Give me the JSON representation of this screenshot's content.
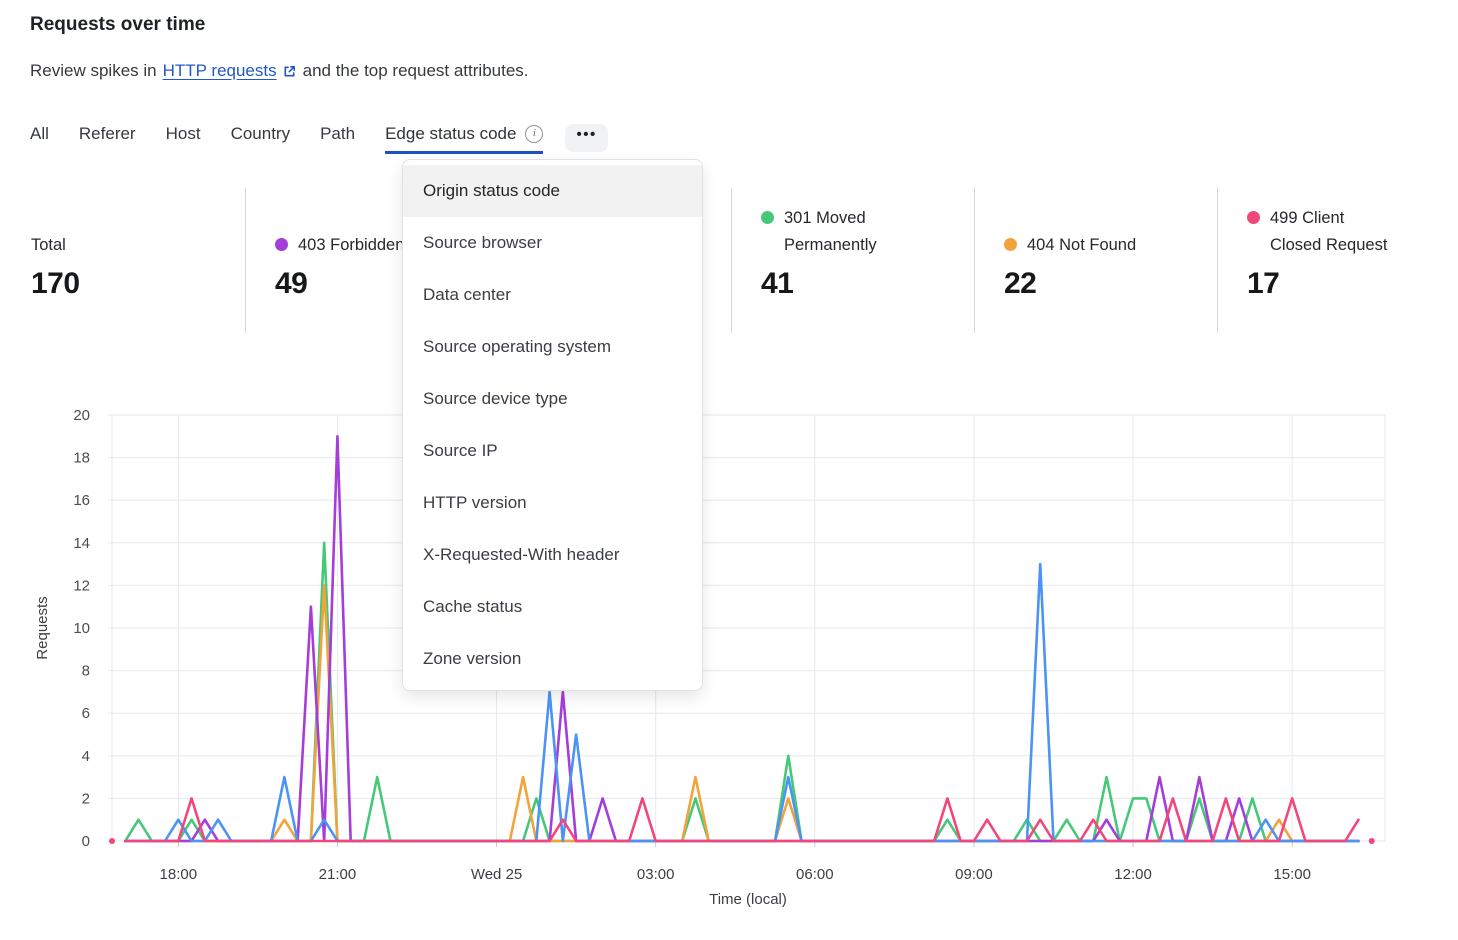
{
  "header": {
    "title": "Requests over time",
    "subtitle_prefix": "Review spikes in",
    "subtitle_link": "HTTP requests",
    "subtitle_suffix": "and the top request attributes.",
    "link_color": "#2158c4"
  },
  "tabs": {
    "items": [
      {
        "label": "All"
      },
      {
        "label": "Referer"
      },
      {
        "label": "Host"
      },
      {
        "label": "Country"
      },
      {
        "label": "Path"
      },
      {
        "label": "Edge status code"
      }
    ],
    "active": "Edge status code",
    "active_has_info_icon": true,
    "info_icon_glyph": "i",
    "more_label": "•••",
    "active_underline_color": "#1c52c5"
  },
  "dropdown": {
    "highlighted": "Origin status code",
    "items": [
      "Origin status code",
      "Source browser",
      "Data center",
      "Source operating system",
      "Source device type",
      "Source IP",
      "HTTP version",
      "X-Requested-With header",
      "Cache status",
      "Zone version"
    ]
  },
  "stats": {
    "columns": [
      {
        "label": "Total",
        "value": "170",
        "dot_color": null
      },
      {
        "label": "403 Forbidden",
        "value": "49",
        "dot_color": "#a53dd9"
      },
      {
        "label": "",
        "value": "",
        "dot_color": null,
        "note": "column hidden behind open dropdown menu"
      },
      {
        "label": "301 Moved Permanently",
        "value": "41",
        "dot_color": "#46c878"
      },
      {
        "label": "404 Not Found",
        "value": "22",
        "dot_color": "#f2a33c"
      },
      {
        "label": "499 Client Closed Request",
        "value": "17",
        "dot_color": "#f2477a"
      }
    ]
  },
  "chart_data": {
    "type": "line",
    "title": "",
    "xlabel": "Time (local)",
    "ylabel": "Requests",
    "ylim": [
      0,
      20
    ],
    "ytick_step": 2,
    "grid": true,
    "legend_position": "stats row above chart",
    "x_slot_minutes": 15,
    "x_slot_count": 96,
    "x_ticks": [
      {
        "slot": 5,
        "label": "18:00"
      },
      {
        "slot": 17,
        "label": "21:00"
      },
      {
        "slot": 29,
        "label": "Wed 25"
      },
      {
        "slot": 41,
        "label": "03:00"
      },
      {
        "slot": 53,
        "label": "06:00"
      },
      {
        "slot": 65,
        "label": "09:00"
      },
      {
        "slot": 77,
        "label": "12:00"
      },
      {
        "slot": 89,
        "label": "15:00"
      }
    ],
    "note": "sparse spikes: value at listed 15-min slot index, 0 at every other slot; series drawn in listed order (last on top)",
    "series": [
      {
        "name": "301 Moved Permanently",
        "color": "#46c878",
        "spikes": {
          "2": 1,
          "6": 1,
          "16": 14,
          "20": 3,
          "32": 2,
          "44": 2,
          "51": 4,
          "63": 1,
          "69": 1,
          "72": 1,
          "75": 3,
          "77": 2,
          "78": 2,
          "82": 2,
          "86": 2
        }
      },
      {
        "name": "404 Not Found",
        "color": "#f2a33c",
        "spikes": {
          "13": 1,
          "16": 12,
          "31": 3,
          "44": 3,
          "51": 2,
          "88": 1
        }
      },
      {
        "name": "403 Forbidden",
        "color": "#a53dd9",
        "spikes": {
          "7": 1,
          "15": 11,
          "17": 19,
          "34": 7,
          "37": 2,
          "75": 1,
          "79": 3,
          "82": 3,
          "85": 2
        }
      },
      {
        "name": "(legend entry hidden by open menu)",
        "color": "#4b94f5",
        "legend_visible": false,
        "spikes": {
          "5": 1,
          "8": 1,
          "13": 3,
          "16": 1,
          "33": 7,
          "35": 5,
          "51": 3,
          "70": 13,
          "87": 1
        }
      },
      {
        "name": "499 Client Closed Request",
        "color": "#f2477a",
        "end_dots": true,
        "spikes": {
          "6": 2,
          "34": 1,
          "40": 2,
          "63": 2,
          "66": 1,
          "70": 1,
          "74": 1,
          "80": 2,
          "84": 2,
          "89": 2,
          "94": 1
        }
      }
    ]
  }
}
